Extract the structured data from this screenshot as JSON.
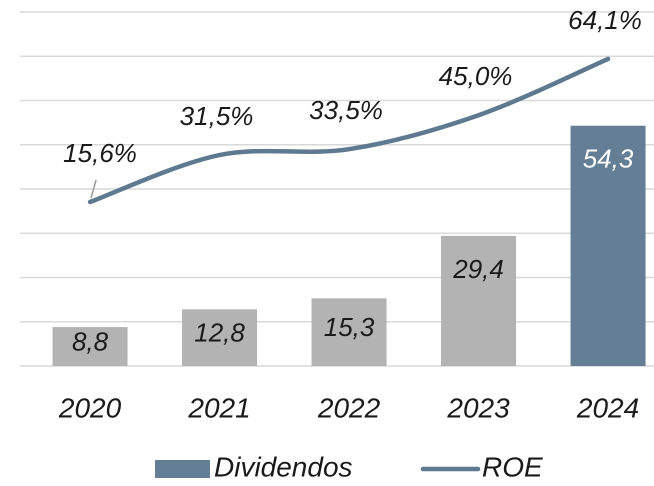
{
  "chart_data": {
    "type": "bar",
    "categories": [
      "2020",
      "2021",
      "2022",
      "2023",
      "2024"
    ],
    "series": [
      {
        "name": "Dividendos",
        "type": "bar",
        "color": "#647f95",
        "point_colors": [
          "#b3b3b3",
          "#b3b3b3",
          "#b3b3b3",
          "#b3b3b3",
          "#647f95"
        ],
        "values": [
          8.8,
          12.8,
          15.3,
          29.4,
          54.3
        ],
        "value_labels": [
          "8,8",
          "12,8",
          "15,3",
          "29,4",
          "54,3"
        ]
      },
      {
        "name": "ROE",
        "type": "line",
        "color": "#5f7a90",
        "axis": "y2",
        "values": [
          15.6,
          31.5,
          33.5,
          45.0,
          64.1
        ],
        "value_labels": [
          "15,6%",
          "31,5%",
          "33,5%",
          "45,0%",
          "64,1%"
        ]
      }
    ],
    "ylim": [
      0,
      80
    ],
    "yticks": [
      0,
      10,
      20,
      30,
      40,
      50,
      60,
      70,
      80
    ],
    "y2lim": [
      -40,
      80
    ],
    "grid": true,
    "legend": "bottom"
  }
}
